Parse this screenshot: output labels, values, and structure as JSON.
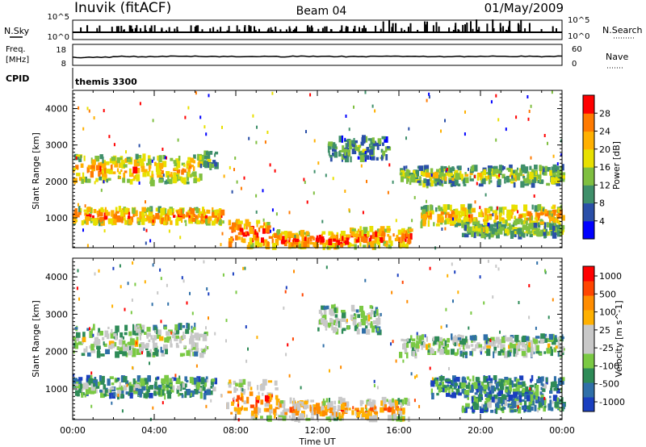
{
  "header": {
    "station": "Inuvik (fitACF)",
    "beam": "Beam 04",
    "date": "01/May/2009"
  },
  "top_panels": {
    "nsky_label": "N.Sky",
    "nsky_ticks": [
      "10^5",
      "10^0"
    ],
    "nsearch_label": "N.Search",
    "nsearch_ticks": [
      "10^5",
      "10^0"
    ],
    "freq_label_1": "Freq.",
    "freq_label_2": "[MHz]",
    "freq_ticks": [
      "18",
      "8"
    ],
    "nave_label": "Nave",
    "nave_ticks": [
      "60",
      "0"
    ],
    "cpid_label": "CPID",
    "cpid_value": "themis 3300"
  },
  "colors": {
    "power_scale": [
      "#0000ff",
      "#2a4fa8",
      "#3f8f6a",
      "#7fbf40",
      "#e8e000",
      "#ffb000",
      "#ff7a00",
      "#ff0000"
    ],
    "velocity_scale": [
      "#1a3fbf",
      "#2f6fa8",
      "#2e8b57",
      "#7ac943",
      "#c8c8c8",
      "#c8c8c8",
      "#ffb000",
      "#ff8c00",
      "#ff4500",
      "#ff0000"
    ]
  },
  "chart_data": [
    {
      "type": "heatmap",
      "name": "power-panel",
      "ylabel": "Slant Range [km]",
      "yticks": [
        "1000",
        "2000",
        "3000",
        "4000"
      ],
      "ylim": [
        180,
        4500
      ],
      "xlim": [
        0,
        24
      ],
      "colorbar_label": "Power [dB]",
      "colorbar_ticks": [
        "4",
        "8",
        "12",
        "16",
        "20",
        "24",
        "28"
      ],
      "colorbar_range": [
        0,
        32
      ],
      "regions": [
        {
          "t": [
            0.0,
            6.3
          ],
          "r": [
            1950,
            2700
          ],
          "level": 0.75
        },
        {
          "t": [
            6.2,
            7.0
          ],
          "r": [
            2400,
            2800
          ],
          "level": 0.45
        },
        {
          "t": [
            0.0,
            7.3
          ],
          "r": [
            850,
            1250
          ],
          "level": 0.85
        },
        {
          "t": [
            7.6,
            9.6
          ],
          "r": [
            180,
            900
          ],
          "level": 0.95
        },
        {
          "t": [
            9.6,
            13.5
          ],
          "r": [
            180,
            600
          ],
          "level": 0.95
        },
        {
          "t": [
            13.5,
            16.5
          ],
          "r": [
            200,
            700
          ],
          "level": 0.9
        },
        {
          "t": [
            12.5,
            15.5
          ],
          "r": [
            2600,
            3200
          ],
          "level": 0.4
        },
        {
          "t": [
            16.0,
            24.0
          ],
          "r": [
            1900,
            2400
          ],
          "level": 0.55
        },
        {
          "t": [
            17.0,
            24.0
          ],
          "r": [
            800,
            1300
          ],
          "level": 0.75
        },
        {
          "t": [
            19.0,
            24.0
          ],
          "r": [
            500,
            800
          ],
          "level": 0.5
        }
      ]
    },
    {
      "type": "heatmap",
      "name": "velocity-panel",
      "ylabel": "Slant Range [km]",
      "yticks": [
        "1000",
        "2000",
        "3000",
        "4000"
      ],
      "ylim": [
        180,
        4500
      ],
      "xlim": [
        0,
        24
      ],
      "colorbar_label": "Velocity [m s^-1]",
      "colorbar_ticks": [
        "1000",
        "500",
        "100",
        "25",
        "-25",
        "-100",
        "-500",
        "-1000"
      ],
      "regions": [
        {
          "t": [
            0.0,
            6.5
          ],
          "r": [
            1900,
            2700
          ],
          "level": 0.5
        },
        {
          "t": [
            0.0,
            7.0
          ],
          "r": [
            800,
            1300
          ],
          "level": 0.35
        },
        {
          "t": [
            7.5,
            10.0
          ],
          "r": [
            200,
            1200
          ],
          "level": 0.8
        },
        {
          "t": [
            10.0,
            16.5
          ],
          "r": [
            180,
            700
          ],
          "level": 0.75
        },
        {
          "t": [
            12.0,
            15.0
          ],
          "r": [
            2500,
            3200
          ],
          "level": 0.5
        },
        {
          "t": [
            16.0,
            24.0
          ],
          "r": [
            1900,
            2400
          ],
          "level": 0.5
        },
        {
          "t": [
            17.5,
            24.0
          ],
          "r": [
            800,
            1300
          ],
          "level": 0.28
        },
        {
          "t": [
            19.0,
            24.0
          ],
          "r": [
            400,
            800
          ],
          "level": 0.3
        }
      ]
    }
  ],
  "time_axis": {
    "label": "Time UT",
    "ticks": [
      "00:00",
      "04:00",
      "08:00",
      "12:00",
      "16:00",
      "20:00",
      "00:00"
    ]
  }
}
